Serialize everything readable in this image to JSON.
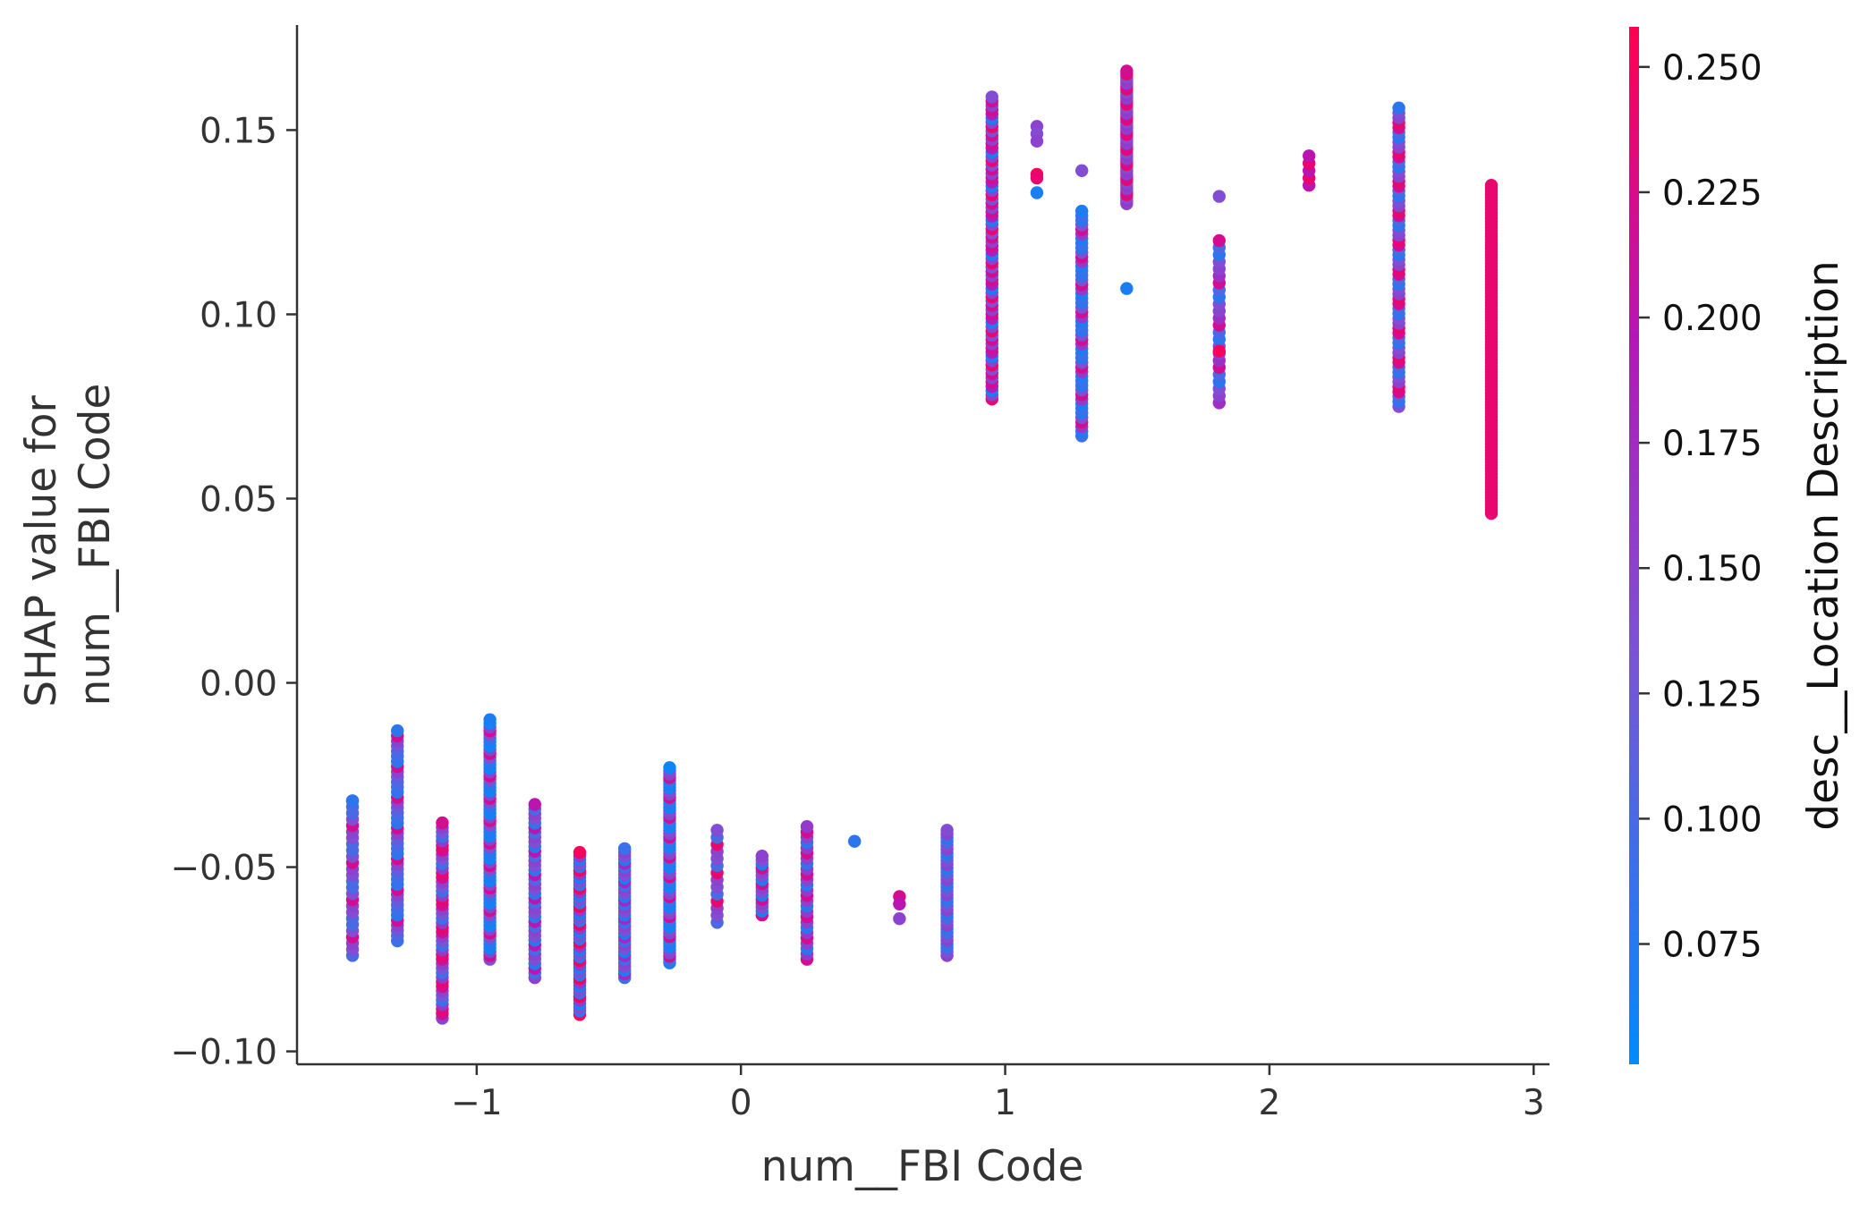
{
  "chart_data": {
    "type": "scatter",
    "title": "",
    "xlabel": "num__FBI Code",
    "ylabel_lines": [
      "SHAP value for",
      "num__FBI Code"
    ],
    "xlim": [
      -1.68,
      3.06
    ],
    "ylim": [
      -0.1035,
      0.1785
    ],
    "xticks": [
      -1,
      0,
      1,
      2,
      3
    ],
    "xtick_labels": [
      "−1",
      "0",
      "1",
      "2",
      "3"
    ],
    "yticks": [
      -0.1,
      -0.05,
      0.0,
      0.05,
      0.1,
      0.15
    ],
    "ytick_labels": [
      "−0.10",
      "−0.05",
      "0.00",
      "0.05",
      "0.10",
      "0.15"
    ],
    "grid": false,
    "colorbar": {
      "label": "desc__Location Description",
      "range": [
        0.051,
        0.258
      ],
      "ticks": [
        0.075,
        0.1,
        0.125,
        0.15,
        0.175,
        0.2,
        0.225,
        0.25
      ],
      "tick_labels": [
        "0.075",
        "0.100",
        "0.125",
        "0.150",
        "0.175",
        "0.200",
        "0.225",
        "0.250"
      ],
      "colormap": [
        "#008afb",
        "#7c52d6",
        "#b616b8",
        "#ff0051"
      ]
    },
    "columns": [
      {
        "x": -1.47,
        "ymin": -0.074,
        "ymax": -0.032,
        "n": 26,
        "c": [
          0.1,
          0.14,
          0.15,
          0.22,
          0.14,
          0.1
        ]
      },
      {
        "x": -1.3,
        "ymin": -0.07,
        "ymax": -0.013,
        "n": 42,
        "c": [
          0.08,
          0.09,
          0.1,
          0.12,
          0.15,
          0.22
        ]
      },
      {
        "x": -1.13,
        "ymin": -0.091,
        "ymax": -0.038,
        "n": 44,
        "c": [
          0.09,
          0.13,
          0.15,
          0.22,
          0.24,
          0.16
        ]
      },
      {
        "x": -0.95,
        "ymin": -0.075,
        "ymax": -0.01,
        "n": 65,
        "c": [
          0.06,
          0.07,
          0.08,
          0.14,
          0.22,
          0.15
        ]
      },
      {
        "x": -0.78,
        "ymin": -0.08,
        "ymax": -0.033,
        "n": 38,
        "c": [
          0.08,
          0.1,
          0.14,
          0.2,
          0.15
        ]
      },
      {
        "x": -0.61,
        "ymin": -0.09,
        "ymax": -0.046,
        "n": 46,
        "c": [
          0.25,
          0.07,
          0.09,
          0.16,
          0.14
        ]
      },
      {
        "x": -0.44,
        "ymin": -0.08,
        "ymax": -0.045,
        "n": 36,
        "c": [
          0.07,
          0.09,
          0.14,
          0.18,
          0.15
        ]
      },
      {
        "x": -0.27,
        "ymin": -0.076,
        "ymax": -0.023,
        "n": 60,
        "c": [
          0.06,
          0.07,
          0.09,
          0.22,
          0.15,
          0.14
        ]
      },
      {
        "x": -0.09,
        "ymin": -0.065,
        "ymax": -0.04,
        "n": 14,
        "c": [
          0.1,
          0.24,
          0.15,
          0.14
        ]
      },
      {
        "x": 0.08,
        "ymin": -0.063,
        "ymax": -0.047,
        "n": 16,
        "c": [
          0.07,
          0.22,
          0.15,
          0.14
        ]
      },
      {
        "x": 0.25,
        "ymin": -0.075,
        "ymax": -0.039,
        "n": 26,
        "c": [
          0.08,
          0.16,
          0.22,
          0.15
        ]
      },
      {
        "x": 0.78,
        "ymin": -0.074,
        "ymax": -0.04,
        "n": 34,
        "c": [
          0.08,
          0.1,
          0.14,
          0.15
        ]
      },
      {
        "x": 0.95,
        "ymin": 0.077,
        "ymax": 0.159,
        "n": 72,
        "c": [
          0.22,
          0.19,
          0.07,
          0.15,
          0.24,
          0.14,
          0.22,
          0.15
        ]
      },
      {
        "x": 1.29,
        "ymin": 0.067,
        "ymax": 0.128,
        "n": 50,
        "c": [
          0.08,
          0.09,
          0.07,
          0.16,
          0.22,
          0.14
        ]
      },
      {
        "x": 1.46,
        "ymin": 0.13,
        "ymax": 0.166,
        "n": 45,
        "c": [
          0.24,
          0.16,
          0.22,
          0.14,
          0.15
        ]
      },
      {
        "x": 1.81,
        "ymin": 0.076,
        "ymax": 0.12,
        "n": 24,
        "c": [
          0.08,
          0.1,
          0.22,
          0.17,
          0.15,
          0.14
        ]
      },
      {
        "x": 2.15,
        "ymin": 0.135,
        "ymax": 0.143,
        "n": 5,
        "c": [
          0.2,
          0.24
        ]
      },
      {
        "x": 2.49,
        "ymin": 0.075,
        "ymax": 0.156,
        "n": 62,
        "c": [
          0.08,
          0.1,
          0.22,
          0.24,
          0.15,
          0.14
        ]
      },
      {
        "x": 2.84,
        "ymin": 0.046,
        "ymax": 0.135,
        "n": 110,
        "c": [
          0.07,
          0.06,
          0.08,
          0.18,
          0.24,
          0.15,
          0.14
        ]
      }
    ],
    "points": [
      {
        "x": -1.47,
        "y": -0.032,
        "c": 0.08
      },
      {
        "x": 0.43,
        "y": -0.043,
        "c": 0.08
      },
      {
        "x": 0.6,
        "y": -0.058,
        "c": 0.22
      },
      {
        "x": 0.6,
        "y": -0.06,
        "c": 0.2
      },
      {
        "x": 0.6,
        "y": -0.064,
        "c": 0.15
      },
      {
        "x": 1.12,
        "y": 0.151,
        "c": 0.15
      },
      {
        "x": 1.12,
        "y": 0.149,
        "c": 0.14
      },
      {
        "x": 1.12,
        "y": 0.147,
        "c": 0.15
      },
      {
        "x": 1.12,
        "y": 0.138,
        "c": 0.25
      },
      {
        "x": 1.12,
        "y": 0.137,
        "c": 0.24
      },
      {
        "x": 1.12,
        "y": 0.133,
        "c": 0.07
      },
      {
        "x": 1.29,
        "y": 0.139,
        "c": 0.14
      },
      {
        "x": 1.46,
        "y": 0.107,
        "c": 0.07
      },
      {
        "x": 1.81,
        "y": 0.132,
        "c": 0.14
      },
      {
        "x": 1.81,
        "y": 0.09,
        "c": 0.25
      }
    ]
  }
}
